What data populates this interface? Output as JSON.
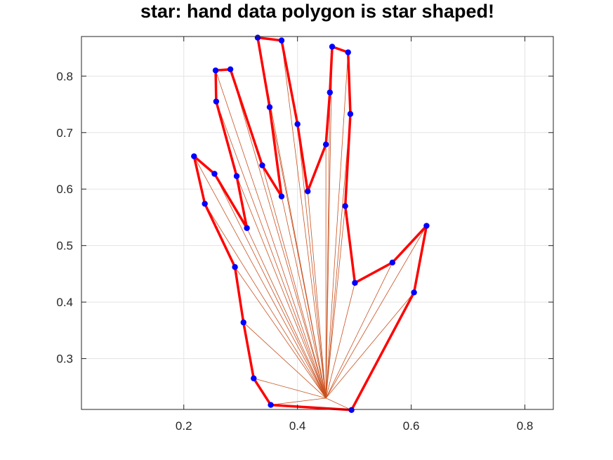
{
  "chart_data": {
    "type": "line",
    "title": "star: hand data polygon is star shaped!",
    "xlabel": "",
    "ylabel": "",
    "xlim": [
      0.02,
      0.85
    ],
    "ylim": [
      0.21,
      0.87
    ],
    "x_ticks": [
      0.2,
      0.4,
      0.6,
      0.8
    ],
    "x_tick_labels": [
      "0.2",
      "0.4",
      "0.6",
      "0.8"
    ],
    "y_ticks": [
      0.3,
      0.4,
      0.5,
      0.6,
      0.7,
      0.8
    ],
    "y_tick_labels": [
      "0.3",
      "0.4",
      "0.5",
      "0.6",
      "0.7",
      "0.8"
    ],
    "grid": true,
    "legend": "none",
    "colors": {
      "outline": "#ff0000",
      "spokes": "#c8501e",
      "vertices": "#0000ff"
    },
    "center": {
      "x": 0.45,
      "y": 0.23
    },
    "polygon": [
      {
        "x": 0.495,
        "y": 0.209
      },
      {
        "x": 0.605,
        "y": 0.417
      },
      {
        "x": 0.627,
        "y": 0.535
      },
      {
        "x": 0.567,
        "y": 0.47
      },
      {
        "x": 0.501,
        "y": 0.434
      },
      {
        "x": 0.484,
        "y": 0.57
      },
      {
        "x": 0.493,
        "y": 0.733
      },
      {
        "x": 0.489,
        "y": 0.842
      },
      {
        "x": 0.461,
        "y": 0.852
      },
      {
        "x": 0.457,
        "y": 0.771
      },
      {
        "x": 0.45,
        "y": 0.679
      },
      {
        "x": 0.418,
        "y": 0.596
      },
      {
        "x": 0.4,
        "y": 0.715
      },
      {
        "x": 0.372,
        "y": 0.863
      },
      {
        "x": 0.33,
        "y": 0.868
      },
      {
        "x": 0.351,
        "y": 0.745
      },
      {
        "x": 0.372,
        "y": 0.587
      },
      {
        "x": 0.338,
        "y": 0.642
      },
      {
        "x": 0.282,
        "y": 0.812
      },
      {
        "x": 0.256,
        "y": 0.81
      },
      {
        "x": 0.257,
        "y": 0.755
      },
      {
        "x": 0.293,
        "y": 0.623
      },
      {
        "x": 0.311,
        "y": 0.531
      },
      {
        "x": 0.254,
        "y": 0.627
      },
      {
        "x": 0.218,
        "y": 0.658
      },
      {
        "x": 0.237,
        "y": 0.574
      },
      {
        "x": 0.29,
        "y": 0.462
      },
      {
        "x": 0.305,
        "y": 0.364
      },
      {
        "x": 0.323,
        "y": 0.265
      },
      {
        "x": 0.353,
        "y": 0.218
      }
    ]
  }
}
